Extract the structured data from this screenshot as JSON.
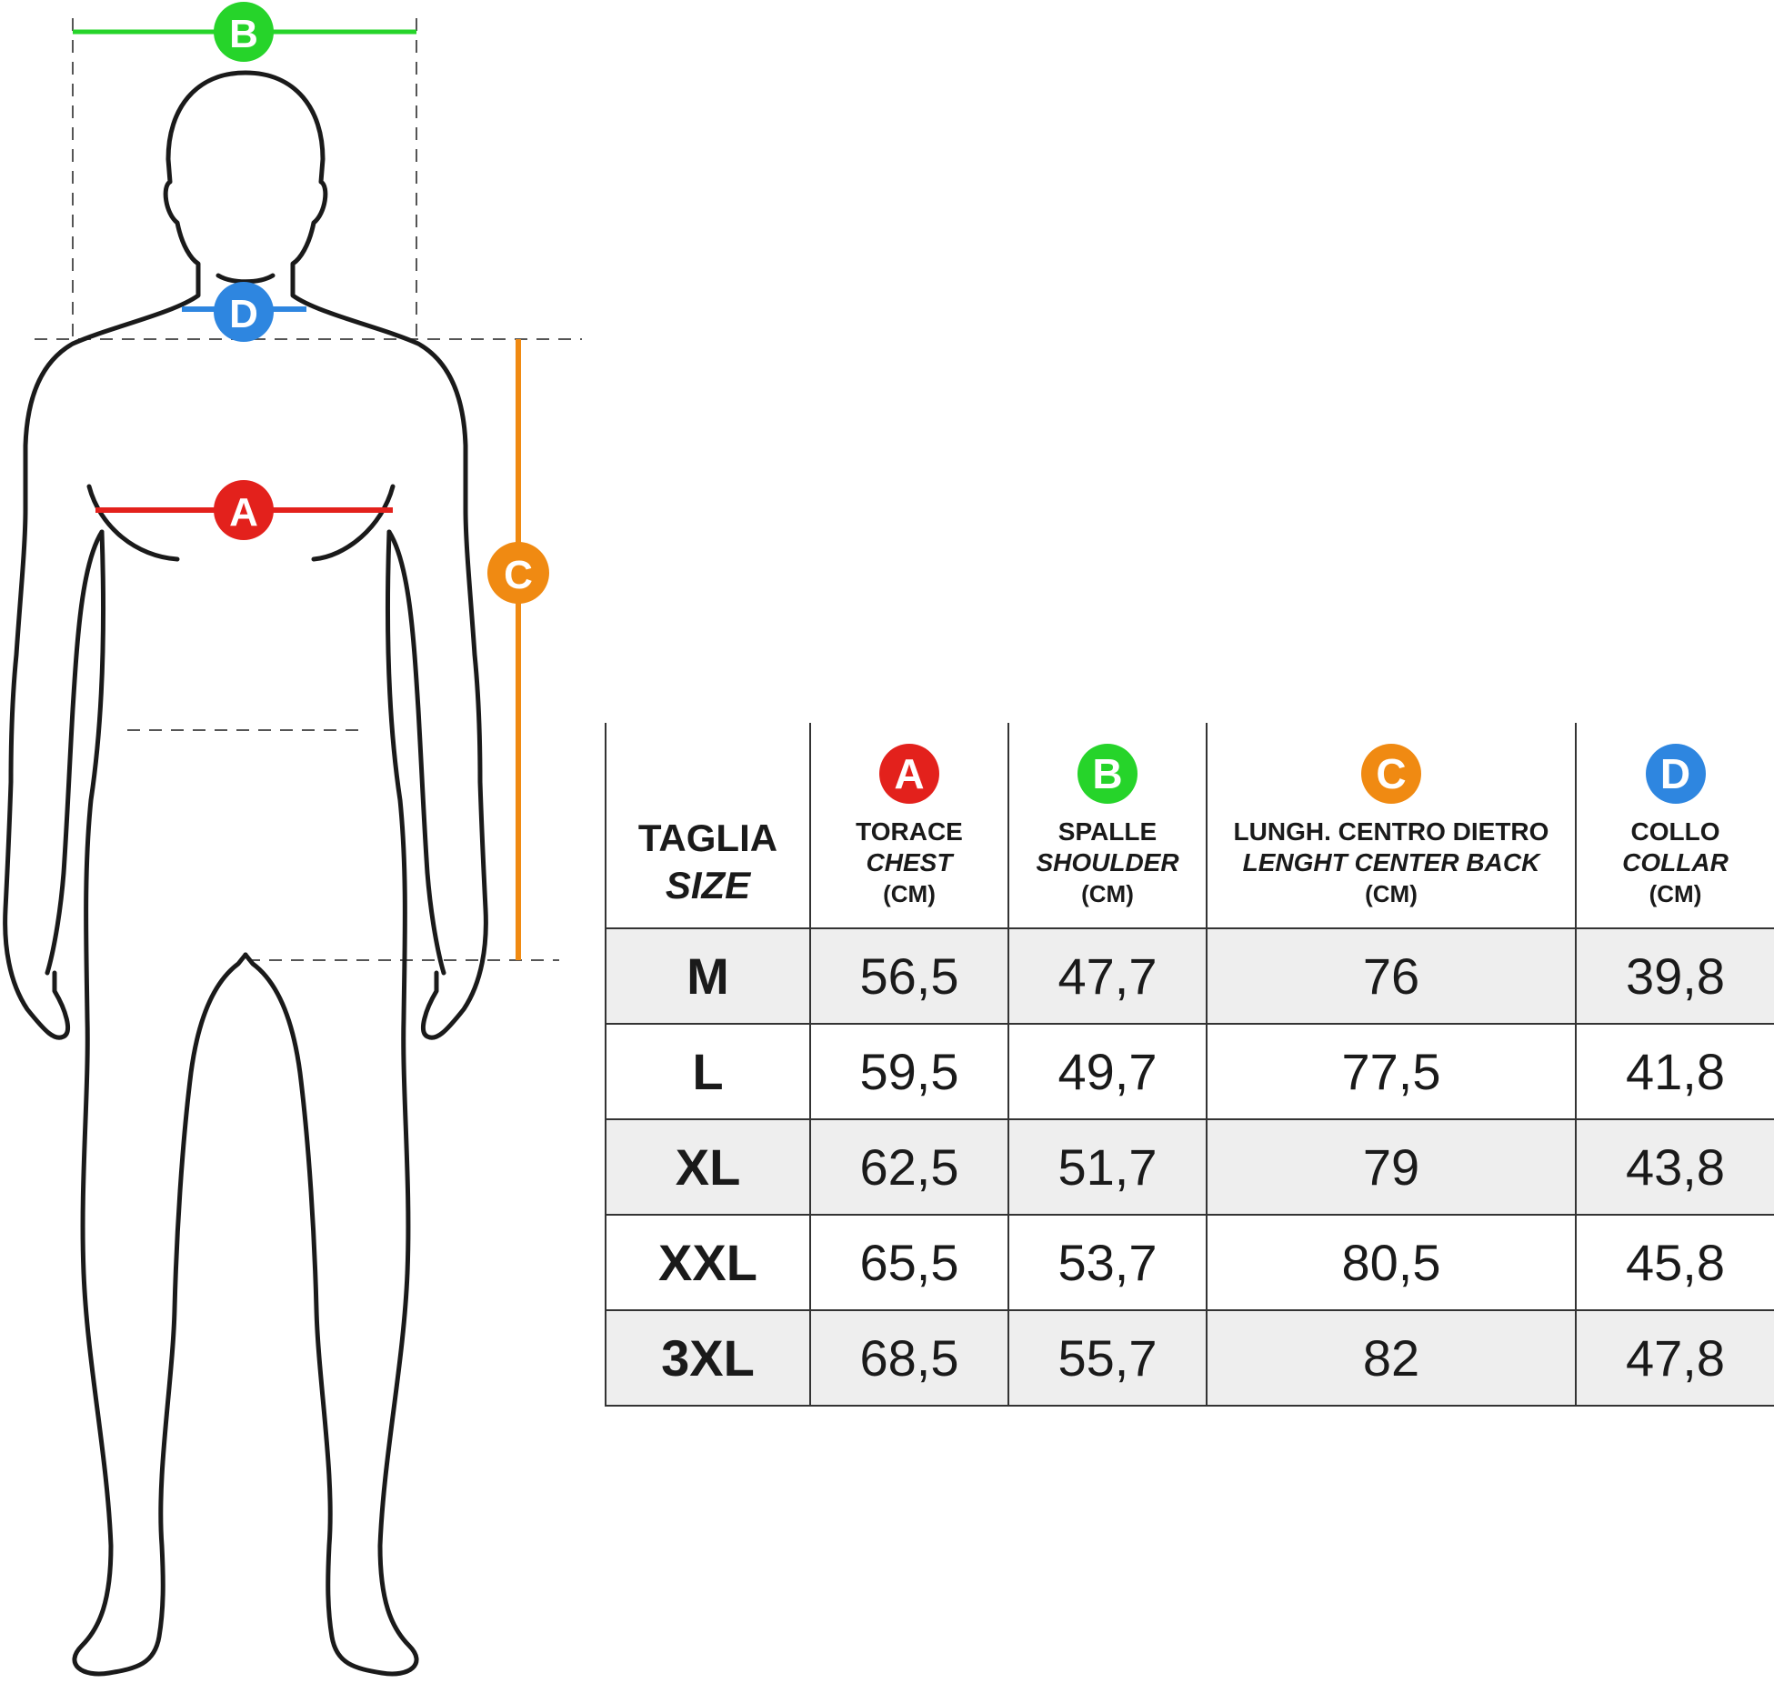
{
  "colors": {
    "chest": "#e3211c",
    "shoulder": "#26d42a",
    "length": "#f08a12",
    "collar": "#2e86e0",
    "outline": "#1a1a1a",
    "row_shade": "#eeeeee"
  },
  "figure": {
    "markers": {
      "chest": "A",
      "shoulder": "B",
      "length": "C",
      "collar": "D"
    }
  },
  "table": {
    "size_header": {
      "it": "TAGLIA",
      "en": "SIZE"
    },
    "columns": [
      {
        "letter": "A",
        "it": "TORACE",
        "en": "CHEST",
        "unit": "(CM)",
        "color": "#e3211c"
      },
      {
        "letter": "B",
        "it": "SPALLE",
        "en": "SHOULDER",
        "unit": "(CM)",
        "color": "#26d42a"
      },
      {
        "letter": "C",
        "it": "LUNGH. CENTRO DIETRO",
        "en": "LENGHT CENTER BACK",
        "unit": "(CM)",
        "color": "#f08a12"
      },
      {
        "letter": "D",
        "it": "COLLO",
        "en": "COLLAR",
        "unit": "(CM)",
        "color": "#2e86e0"
      }
    ],
    "rows": [
      {
        "size": "M",
        "values": [
          "56,5",
          "47,7",
          "76",
          "39,8"
        ]
      },
      {
        "size": "L",
        "values": [
          "59,5",
          "49,7",
          "77,5",
          "41,8"
        ]
      },
      {
        "size": "XL",
        "values": [
          "62,5",
          "51,7",
          "79",
          "43,8"
        ]
      },
      {
        "size": "XXL",
        "values": [
          "65,5",
          "53,7",
          "80,5",
          "45,8"
        ]
      },
      {
        "size": "3XL",
        "values": [
          "68,5",
          "55,7",
          "82",
          "47,8"
        ]
      }
    ]
  }
}
